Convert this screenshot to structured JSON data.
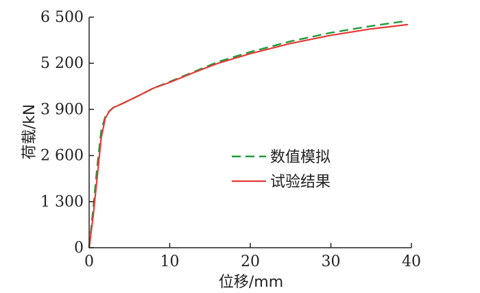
{
  "chart_data": {
    "type": "line",
    "xlabel": "位移/mm",
    "ylabel": "荷载/kN",
    "xlim": [
      0,
      40
    ],
    "ylim": [
      0,
      6500
    ],
    "x_ticks": [
      0,
      10,
      20,
      30,
      40
    ],
    "x_tick_labels": [
      "0",
      "10",
      "20",
      "30",
      "40"
    ],
    "y_ticks": [
      0,
      1300,
      2600,
      3900,
      5200,
      6500
    ],
    "y_tick_labels": [
      "0",
      "1 300",
      "2 600",
      "3 900",
      "5 200",
      "6 500"
    ],
    "grid": false,
    "legend_position": "center-right",
    "series": [
      {
        "name": "数值模拟",
        "style": "dashed",
        "color": "#1f9a3a",
        "points": [
          [
            0,
            0
          ],
          [
            0.5,
            1100
          ],
          [
            1,
            2300
          ],
          [
            1.5,
            3300
          ],
          [
            2,
            3700
          ],
          [
            2.5,
            3850
          ],
          [
            3,
            3950
          ],
          [
            4,
            4050
          ],
          [
            6,
            4270
          ],
          [
            8,
            4500
          ],
          [
            10,
            4680
          ],
          [
            13,
            4960
          ],
          [
            16,
            5240
          ],
          [
            20,
            5520
          ],
          [
            25,
            5820
          ],
          [
            30,
            6060
          ],
          [
            35,
            6250
          ],
          [
            39,
            6380
          ]
        ]
      },
      {
        "name": "试验结果",
        "style": "solid",
        "color": "#e53935",
        "points": [
          [
            0,
            0
          ],
          [
            0.5,
            900
          ],
          [
            1,
            2000
          ],
          [
            1.5,
            3100
          ],
          [
            2,
            3650
          ],
          [
            2.5,
            3850
          ],
          [
            3,
            3950
          ],
          [
            4,
            4050
          ],
          [
            6,
            4270
          ],
          [
            8,
            4500
          ],
          [
            10,
            4660
          ],
          [
            13,
            4940
          ],
          [
            16,
            5200
          ],
          [
            20,
            5470
          ],
          [
            25,
            5760
          ],
          [
            30,
            5990
          ],
          [
            35,
            6170
          ],
          [
            39.5,
            6290
          ]
        ]
      }
    ]
  }
}
